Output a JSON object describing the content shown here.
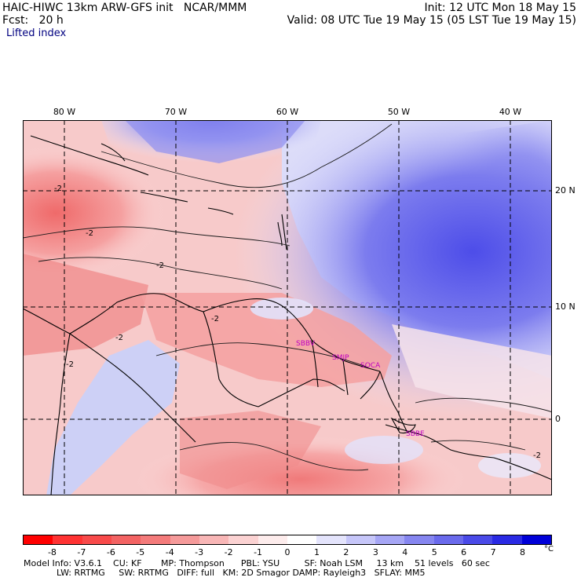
{
  "header": {
    "line1_left": "HAIC-HIWC 13km ARW-GFS init   NCAR/MMM",
    "line1_right": "Init: 12 UTC Mon 18 May 15",
    "line2_left": "Fcst:   20 h",
    "line2_right": "Valid: 08 UTC Tue 19 May 15 (05 LST Tue 19 May 15)",
    "field": "Lifted index"
  },
  "map": {
    "lon_labels": [
      "80 W",
      "70 W",
      "60 W",
      "50 W",
      "40 W"
    ],
    "lat_labels": [
      "20 N",
      "10 N",
      "0"
    ],
    "stations": [
      "SBBV",
      "SMJP",
      "SOCA",
      "SBBE"
    ],
    "contour_labels": [
      "-2",
      "-2",
      "-2",
      "-2",
      "-2",
      "-2",
      "-2"
    ]
  },
  "colorbar": {
    "ticks": [
      "-8",
      "-7",
      "-6",
      "-5",
      "-4",
      "-3",
      "-2",
      "-1",
      "0",
      "1",
      "2",
      "3",
      "4",
      "5",
      "6",
      "7",
      "8"
    ],
    "unit": "°C",
    "colors": [
      "#ff0000",
      "#ff3333",
      "#f84a4a",
      "#f36363",
      "#f47b7b",
      "#f59a9a",
      "#f8b6b6",
      "#fbd2d2",
      "#fdecec",
      "#ffffff",
      "#e4e4fc",
      "#c6c6f9",
      "#a6a6f5",
      "#8686f0",
      "#6a6aec",
      "#4a4ae8",
      "#2a2ae4",
      "#0000d8"
    ]
  },
  "model_info": {
    "line1": "Model Info: V3.6.1    CU: KF       MP: Thompson      PBL: YSU         SF: Noah LSM     13 km    51 levels   60 sec",
    "line2": "            LW: RRTMG     SW: RRTMG   DIFF: full   KM: 2D Smagor DAMP: Rayleigh3   SFLAY: MM5"
  }
}
